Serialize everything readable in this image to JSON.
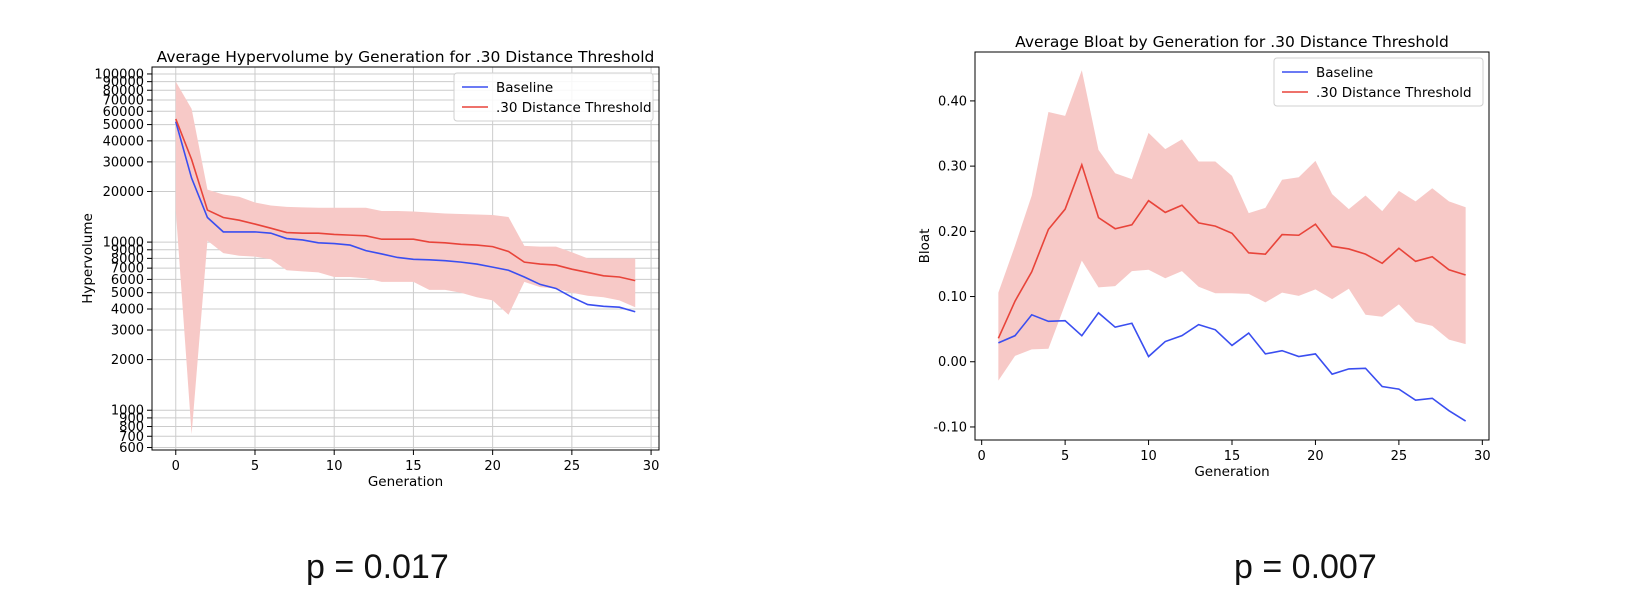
{
  "chart_data": [
    {
      "type": "line",
      "title": "Average Hypervolume by Generation for .30 Distance Threshold",
      "xlabel": "Generation",
      "ylabel": "Hypervolume",
      "yscale": "log",
      "xlim": [
        -1.5,
        30.5
      ],
      "ylim": [
        580,
        110000
      ],
      "grid": true,
      "legend_position": "top-right",
      "x_ticks": [
        0,
        5,
        10,
        15,
        20,
        25,
        30
      ],
      "y_ticks": [
        600,
        700,
        800,
        900,
        1000,
        2000,
        3000,
        4000,
        5000,
        6000,
        7000,
        8000,
        9000,
        10000,
        20000,
        30000,
        40000,
        50000,
        60000,
        70000,
        80000,
        90000,
        100000
      ],
      "x": [
        0,
        1,
        2,
        3,
        4,
        5,
        6,
        7,
        8,
        9,
        10,
        11,
        12,
        13,
        14,
        15,
        16,
        17,
        18,
        19,
        20,
        21,
        22,
        23,
        24,
        25,
        26,
        27,
        28,
        29
      ],
      "series": [
        {
          "name": "Baseline",
          "color": "#3a4ef0",
          "values": [
            52000,
            24000,
            14000,
            11500,
            11500,
            11500,
            11300,
            10500,
            10300,
            9900,
            9800,
            9600,
            8900,
            8500,
            8100,
            7900,
            7850,
            7750,
            7600,
            7400,
            7100,
            6800,
            6200,
            5600,
            5300,
            4700,
            4250,
            4150,
            4100,
            3850
          ]
        },
        {
          "name": ".30 Distance Threshold",
          "color": "#e8443a",
          "values": [
            54000,
            31000,
            15500,
            14000,
            13500,
            12800,
            12100,
            11400,
            11300,
            11300,
            11100,
            11000,
            10900,
            10400,
            10400,
            10400,
            10000,
            9900,
            9700,
            9600,
            9400,
            8800,
            7600,
            7400,
            7300,
            6900,
            6600,
            6300,
            6200,
            5900
          ],
          "band_upper": [
            90000,
            62000,
            20500,
            19200,
            18600,
            17200,
            16500,
            16200,
            16100,
            16000,
            16000,
            16000,
            16000,
            15300,
            15300,
            15200,
            15000,
            14800,
            14700,
            14600,
            14500,
            14100,
            9500,
            9400,
            9400,
            8700,
            8000,
            8000,
            8000,
            8000
          ],
          "band_lower": [
            15500,
            720,
            10200,
            8600,
            8300,
            8200,
            7900,
            6800,
            6700,
            6600,
            6200,
            6200,
            6100,
            5800,
            5800,
            5800,
            5200,
            5200,
            5000,
            4700,
            4500,
            3700,
            5800,
            5400,
            5300,
            5000,
            4800,
            4700,
            4500,
            4100
          ]
        }
      ]
    },
    {
      "type": "line",
      "title": "Average Bloat by Generation for .30 Distance Threshold",
      "xlabel": "Generation",
      "ylabel": "Bloat",
      "xlim": [
        -0.4,
        30.4
      ],
      "ylim": [
        -0.12,
        0.475
      ],
      "grid": false,
      "legend_position": "top-right",
      "x_ticks": [
        0,
        5,
        10,
        15,
        20,
        25,
        30
      ],
      "y_ticks": [
        -0.1,
        0.0,
        0.1,
        0.2,
        0.3,
        0.4
      ],
      "y_tick_labels": [
        "-0.10",
        "0.00",
        "0.10",
        "0.20",
        "0.30",
        "0.40"
      ],
      "x": [
        1,
        2,
        3,
        4,
        5,
        6,
        7,
        8,
        9,
        10,
        11,
        12,
        13,
        14,
        15,
        16,
        17,
        18,
        19,
        20,
        21,
        22,
        23,
        24,
        25,
        26,
        27,
        28,
        29
      ],
      "series": [
        {
          "name": "Baseline",
          "color": "#3a4ef0",
          "values": [
            0.029,
            0.04,
            0.072,
            0.062,
            0.063,
            0.04,
            0.075,
            0.053,
            0.059,
            0.008,
            0.031,
            0.04,
            0.057,
            0.049,
            0.025,
            0.044,
            0.012,
            0.017,
            0.008,
            0.012,
            -0.019,
            -0.011,
            -0.01,
            -0.038,
            -0.042,
            -0.059,
            -0.056,
            -0.075,
            -0.091
          ]
        },
        {
          "name": ".30 Distance Threshold",
          "color": "#e8443a",
          "values": [
            0.036,
            0.093,
            0.138,
            0.203,
            0.234,
            0.302,
            0.221,
            0.204,
            0.21,
            0.247,
            0.229,
            0.24,
            0.213,
            0.208,
            0.197,
            0.167,
            0.165,
            0.195,
            0.194,
            0.211,
            0.177,
            0.173,
            0.165,
            0.151,
            0.174,
            0.154,
            0.161,
            0.141,
            0.133
          ],
          "band_upper": [
            0.106,
            0.178,
            0.255,
            0.383,
            0.377,
            0.447,
            0.325,
            0.289,
            0.28,
            0.351,
            0.326,
            0.341,
            0.307,
            0.307,
            0.285,
            0.228,
            0.236,
            0.279,
            0.283,
            0.308,
            0.257,
            0.234,
            0.255,
            0.231,
            0.262,
            0.246,
            0.266,
            0.246,
            0.237
          ],
          "band_lower": [
            -0.029,
            0.009,
            0.019,
            0.02,
            0.088,
            0.155,
            0.114,
            0.116,
            0.139,
            0.141,
            0.128,
            0.139,
            0.115,
            0.105,
            0.105,
            0.104,
            0.091,
            0.106,
            0.101,
            0.111,
            0.096,
            0.112,
            0.072,
            0.069,
            0.088,
            0.061,
            0.055,
            0.034,
            0.027
          ]
        }
      ]
    }
  ],
  "annotations": {
    "left_pvalue": "p = 0.017",
    "right_pvalue": "p = 0.007"
  },
  "style": {
    "band_color": "#f7c9c7",
    "grid_color": "#cccccc"
  }
}
